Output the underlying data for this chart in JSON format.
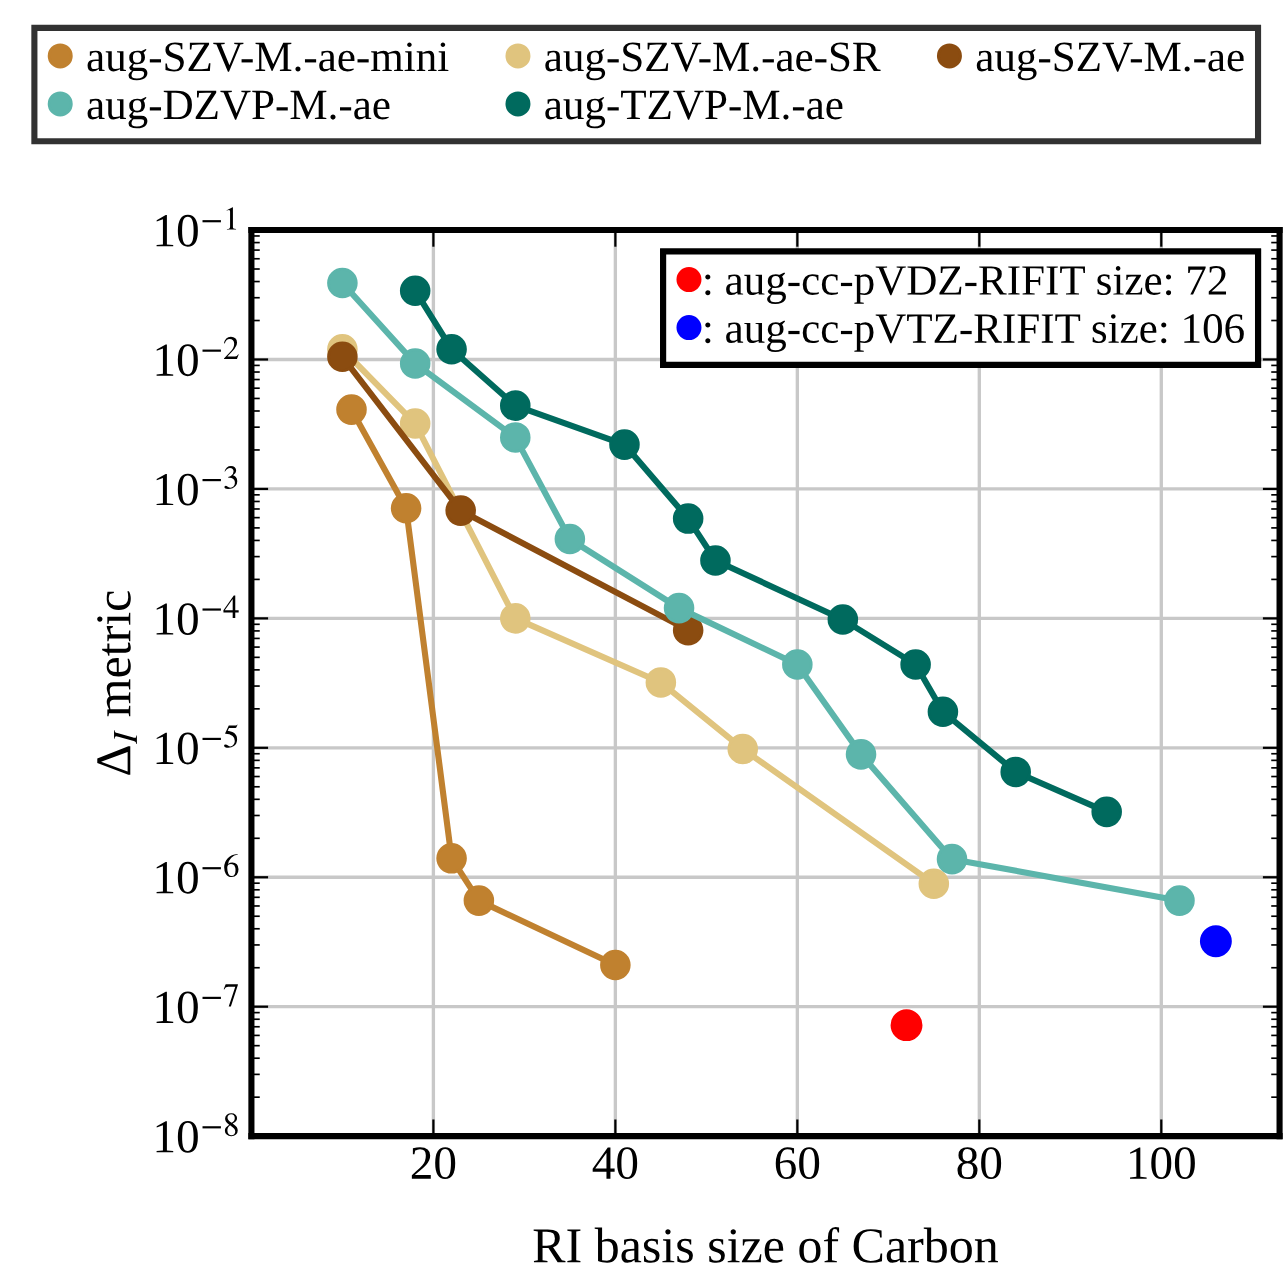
{
  "chart_data": {
    "type": "line",
    "xlabel": "RI basis size of Carbon",
    "ylabel": "Δ$_{I}$ metric",
    "log": "y",
    "grid": true,
    "legend": "top",
    "marker": "circle",
    "xlim": [
      0,
      113
    ],
    "xticks": [
      20,
      40,
      60,
      80,
      100
    ],
    "ylim": [
      1e-08,
      0.1
    ],
    "yticks": [
      {
        "value": 1e-08,
        "label": "10$^{−8}$"
      },
      {
        "value": 1e-07,
        "label": "10$^{−7}$"
      },
      {
        "value": 1e-06,
        "label": "10$^{−6}$"
      },
      {
        "value": 1e-05,
        "label": "10$^{−5}$"
      },
      {
        "value": 0.0001,
        "label": "10$^{−4}$"
      },
      {
        "value": 0.001,
        "label": "10$^{−3}$"
      },
      {
        "value": 0.01,
        "label": "10$^{−2}$"
      },
      {
        "value": 0.1,
        "label": "10$^{−1}$"
      }
    ],
    "series": [
      {
        "name": "aug-SZV-M.-ae-mini",
        "color": "#c0812f",
        "x": [
          11,
          17,
          22,
          25,
          40
        ],
        "values": [
          0.0041,
          0.00071,
          1.4e-06,
          6.6e-07,
          2.1e-07
        ]
      },
      {
        "name": "aug-SZV-M.-ae-SR",
        "color": "#e0c47e",
        "x": [
          10,
          18,
          29,
          45,
          54,
          75
        ],
        "values": [
          0.012,
          0.0032,
          0.0001,
          3.2e-05,
          9.8e-06,
          8.9e-07
        ]
      },
      {
        "name": "aug-SZV-M.-ae",
        "color": "#8b4c10",
        "x": [
          10,
          23,
          48
        ],
        "values": [
          0.0105,
          0.00068,
          8.1e-05
        ]
      },
      {
        "name": "aug-DZVP-M.-ae",
        "color": "#5cb5ab",
        "x": [
          10,
          18,
          29,
          35,
          47,
          60,
          67,
          77,
          102
        ],
        "values": [
          0.039,
          0.0093,
          0.0025,
          0.00041,
          0.00012,
          4.4e-05,
          8.9e-06,
          1.38e-06,
          6.6e-07
        ]
      },
      {
        "name": "aug-TZVP-M.-ae",
        "color": "#006a5e",
        "x": [
          18,
          22,
          29,
          41,
          48,
          51,
          65,
          73,
          76,
          84,
          94
        ],
        "values": [
          0.034,
          0.012,
          0.0044,
          0.0022,
          0.00059,
          0.00028,
          9.8e-05,
          4.4e-05,
          1.9e-05,
          6.5e-06,
          3.2e-06
        ]
      },
      {
        "name": ": aug-cc-pVDZ-RIFIT size: 72",
        "type": "scatter",
        "color": "#ff0000",
        "x": [
          72
        ],
        "values": [
          7.2e-08
        ]
      },
      {
        "name": ": aug-cc-pVTZ-RIFIT size: 106",
        "type": "scatter",
        "color": "#0000ff",
        "x": [
          106
        ],
        "values": [
          3.2e-07
        ]
      }
    ]
  }
}
